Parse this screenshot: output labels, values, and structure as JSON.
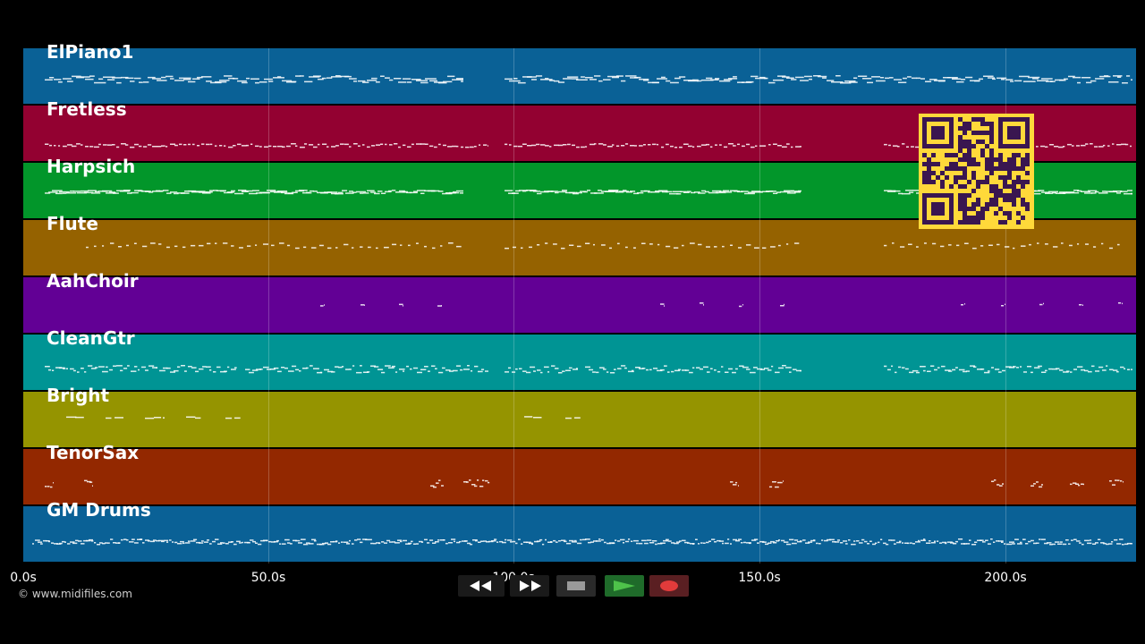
{
  "tracks": [
    {
      "name": "ElPiano1",
      "color": "#0a6196"
    },
    {
      "name": "Fretless",
      "color": "#930131"
    },
    {
      "name": "Harpsich",
      "color": "#02962a"
    },
    {
      "name": "Flute",
      "color": "#956200"
    },
    {
      "name": "AahChoir",
      "color": "#620095"
    },
    {
      "name": "CleanGtr",
      "color": "#009494"
    },
    {
      "name": "Bright",
      "color": "#959400"
    },
    {
      "name": "TenorSax",
      "color": "#932800"
    },
    {
      "name": "GM Drums",
      "color": "#0a6196"
    }
  ],
  "timeline": {
    "ticks": [
      "0.0s",
      "50.0s",
      "100.0s",
      "150.0s",
      "200.0s"
    ]
  },
  "copyright": "© www.midifiles.com",
  "transport": {
    "rewind": "rewind-icon",
    "fast_forward": "fast-forward-icon",
    "stop": "stop-icon",
    "play": "play-icon",
    "record": "record-icon"
  },
  "colors": {
    "background": "#000000",
    "qr_background": "#ffd93a",
    "qr_foreground": "#3a1650",
    "play_button": "#1f6b2a",
    "record_button": "#5a1f22"
  }
}
